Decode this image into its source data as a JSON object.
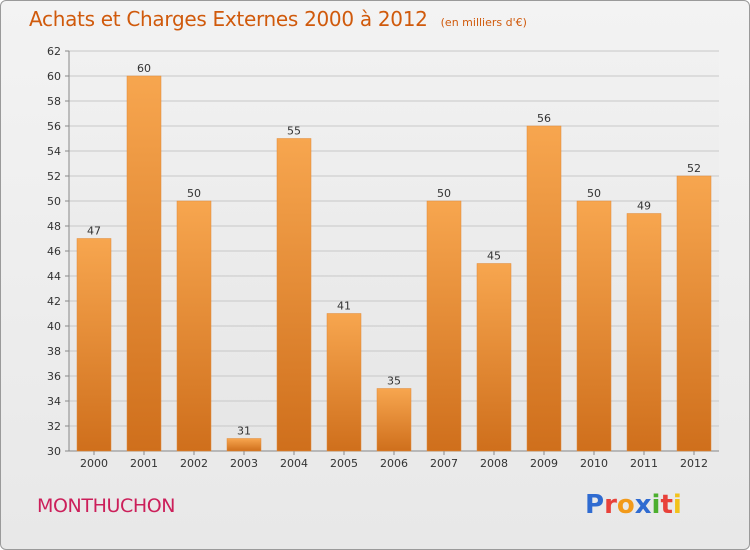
{
  "header": {
    "title": "Achats et Charges Externes 2000 à 2012",
    "unit": "(en milliers d'€)"
  },
  "footer": {
    "commune": "MONTHUCHON",
    "logo_text": "Proxiti",
    "logo_colors": [
      "#2f6bd1",
      "#e8413a",
      "#f29a1a",
      "#2f6bd1",
      "#4caf2e",
      "#e8413a",
      "#f2c21a"
    ]
  },
  "colors": {
    "title": "#d05a0c",
    "commune": "#cc1f5a",
    "bar_top": "#f7a64f",
    "bar_bottom": "#cf6f1c",
    "grid": "#c8c8c8"
  },
  "chart_data": {
    "type": "bar",
    "title": "Achats et Charges Externes 2000 à 2012",
    "subtitle": "(en milliers d'€)",
    "xlabel": "",
    "ylabel": "",
    "categories": [
      "2000",
      "2001",
      "2002",
      "2003",
      "2004",
      "2005",
      "2006",
      "2007",
      "2008",
      "2009",
      "2010",
      "2011",
      "2012"
    ],
    "values": [
      47,
      60,
      50,
      31,
      55,
      41,
      35,
      50,
      45,
      56,
      50,
      49,
      52
    ],
    "ylim": [
      30,
      62
    ],
    "yticks": [
      30,
      32,
      34,
      36,
      38,
      40,
      42,
      44,
      46,
      48,
      50,
      52,
      54,
      56,
      58,
      60,
      62
    ],
    "grid": true,
    "legend": "none"
  }
}
